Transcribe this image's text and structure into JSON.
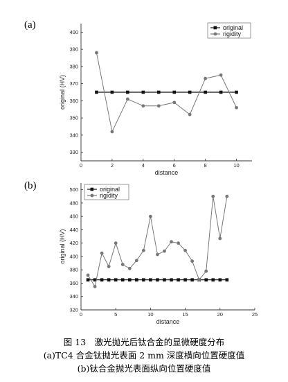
{
  "figure_caption": {
    "title": "图 13　激光抛光后钛合金的显微硬度分布",
    "line_a": "(a)TC4 合金钛抛光表面 2 mm 深度横向位置硬度值",
    "line_b": "(b)钛合金抛光表面纵向位置硬度值"
  },
  "colors": {
    "original": "#111111",
    "rigidity": "#777777",
    "axis": "#333333"
  },
  "chart_data": [
    {
      "panel_label": "(a)",
      "type": "line",
      "xlabel": "distance",
      "ylabel": "original (HV)",
      "xlim": [
        0,
        11
      ],
      "ylim": [
        325,
        405
      ],
      "xticks": [
        0,
        2,
        4,
        6,
        8,
        10
      ],
      "yticks": [
        330,
        340,
        350,
        360,
        370,
        380,
        390,
        400
      ],
      "legend_position": "top-right",
      "grid": false,
      "series": [
        {
          "name": "original",
          "marker": "square",
          "x": [
            1,
            2,
            3,
            4,
            5,
            6,
            7,
            8,
            9,
            10
          ],
          "y": [
            365,
            365,
            365,
            365,
            365,
            365,
            365,
            365,
            365,
            365
          ]
        },
        {
          "name": "rigidity",
          "marker": "circle",
          "x": [
            1,
            2,
            3,
            4,
            5,
            6,
            7,
            8,
            9,
            10
          ],
          "y": [
            388,
            342,
            361,
            357,
            357,
            359,
            352,
            373,
            375,
            356
          ]
        }
      ]
    },
    {
      "panel_label": "(b)",
      "type": "line",
      "xlabel": "distance",
      "ylabel": "original (HV)",
      "xlim": [
        0,
        25
      ],
      "ylim": [
        320,
        510
      ],
      "xticks": [
        0,
        5,
        10,
        15,
        20,
        25
      ],
      "yticks": [
        320,
        340,
        360,
        380,
        400,
        420,
        440,
        460,
        480,
        500
      ],
      "legend_position": "top-left",
      "grid": false,
      "series": [
        {
          "name": "original",
          "marker": "square",
          "x": [
            1,
            2,
            3,
            4,
            5,
            6,
            7,
            8,
            9,
            10,
            11,
            12,
            13,
            14,
            15,
            16,
            17,
            18,
            19,
            20,
            21
          ],
          "y": [
            365,
            365,
            365,
            365,
            365,
            365,
            365,
            365,
            365,
            365,
            365,
            365,
            365,
            365,
            365,
            365,
            365,
            365,
            365,
            365,
            365
          ]
        },
        {
          "name": "rigidity",
          "marker": "circle",
          "x": [
            1,
            2,
            3,
            4,
            5,
            6,
            7,
            8,
            9,
            10,
            11,
            12,
            13,
            14,
            15,
            16,
            17,
            18,
            19,
            20,
            21
          ],
          "y": [
            372,
            355,
            405,
            385,
            420,
            388,
            382,
            394,
            409,
            460,
            403,
            408,
            422,
            420,
            409,
            393,
            365,
            378,
            490,
            427,
            490
          ]
        }
      ]
    }
  ]
}
